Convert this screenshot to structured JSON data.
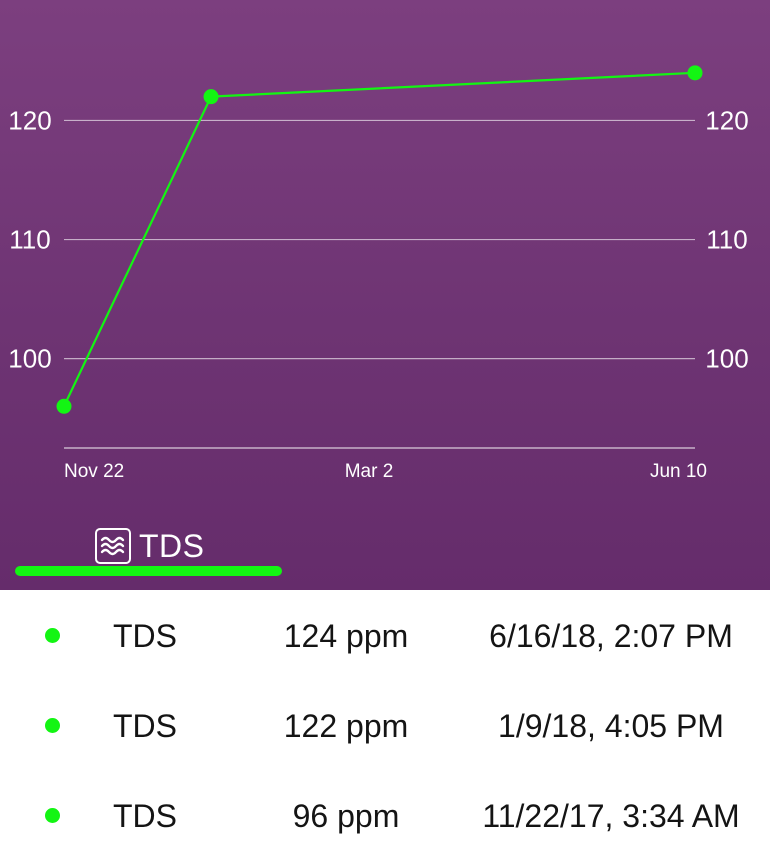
{
  "chart_data": {
    "type": "line",
    "x_tick_labels": [
      "Nov 22",
      "Mar 2",
      "Jun 10"
    ],
    "y_ticks": [
      100,
      110,
      120
    ],
    "ylim": [
      93,
      126
    ],
    "grid": true,
    "series": [
      {
        "name": "TDS",
        "color": "#13f513",
        "points": [
          {
            "date": "2017-11-22",
            "value": 96
          },
          {
            "date": "2018-01-09",
            "value": 122
          },
          {
            "date": "2018-06-16",
            "value": 124
          }
        ]
      }
    ]
  },
  "tab": {
    "label": "TDS",
    "icon": "waves-icon",
    "underline_color": "#13f513"
  },
  "readings": [
    {
      "name": "TDS",
      "value": "124 ppm",
      "time": "6/16/18, 2:07 PM"
    },
    {
      "name": "TDS",
      "value": "122 ppm",
      "time": "1/9/18, 4:05 PM"
    },
    {
      "name": "TDS",
      "value": "96 ppm",
      "time": "11/22/17, 3:34 AM"
    }
  ],
  "colors": {
    "panel_top": "#7c3f7f",
    "panel_bottom": "#652c6b",
    "accent": "#13f513"
  }
}
